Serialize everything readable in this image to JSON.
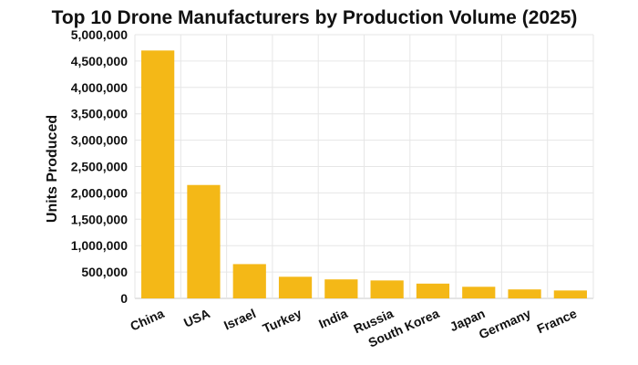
{
  "chart_data": {
    "type": "bar",
    "title": "Top 10 Drone Manufacturers by Production Volume (2025)",
    "xlabel": "",
    "ylabel": "Units Produced",
    "ylim": [
      0,
      5000000
    ],
    "yticks": [
      "0",
      "500,000",
      "1,000,000",
      "1,500,000",
      "2,000,000",
      "2,500,000",
      "3,000,000",
      "3,500,000",
      "4,000,000",
      "4,500,000",
      "5,000,000"
    ],
    "categories": [
      "China",
      "USA",
      "Israel",
      "Turkey",
      "India",
      "Russia",
      "South Korea",
      "Japan",
      "Germany",
      "France"
    ],
    "values": [
      4700000,
      2150000,
      650000,
      410000,
      360000,
      340000,
      280000,
      220000,
      170000,
      150000
    ],
    "bar_color": "#f4b817",
    "grid": true,
    "legend": "none"
  }
}
